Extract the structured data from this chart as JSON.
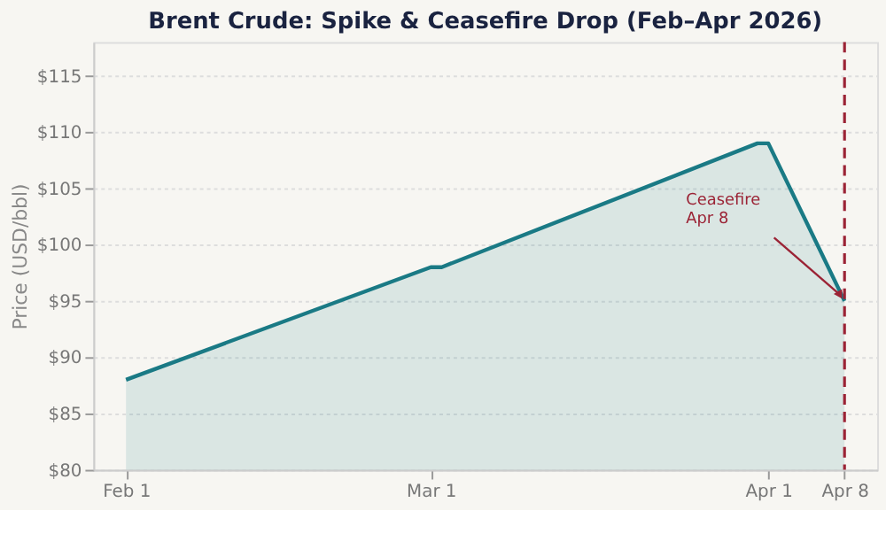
{
  "chart_data": {
    "type": "area",
    "title": "Brent Crude: Spike & Ceasefire Drop (Feb–Apr 2026)",
    "ylabel": "Price (USD/bbl)",
    "x": [
      "2026-02-01",
      "2026-03-01",
      "2026-03-02",
      "2026-03-31",
      "2026-04-01",
      "2026-04-08"
    ],
    "series": [
      {
        "color": "#1a7a85",
        "values": [
          88,
          98,
          98,
          109,
          109,
          95
        ]
      }
    ],
    "xlim": [
      "2026-01-29",
      "2026-04-11"
    ],
    "xticks": [
      {
        "value": "2026-02-01",
        "label": "Feb 1"
      },
      {
        "value": "2026-03-01",
        "label": "Mar 1"
      },
      {
        "value": "2026-04-01",
        "label": "Apr 1"
      },
      {
        "value": "2026-04-08",
        "label": "Apr 8"
      }
    ],
    "ylim": [
      80,
      118
    ],
    "yticks": [
      {
        "value": 80,
        "label": "$80"
      },
      {
        "value": 85,
        "label": "$85"
      },
      {
        "value": 90,
        "label": "$90"
      },
      {
        "value": 95,
        "label": "$95"
      },
      {
        "value": 100,
        "label": "$100"
      },
      {
        "value": 105,
        "label": "$105"
      },
      {
        "value": 110,
        "label": "$110"
      },
      {
        "value": 115,
        "label": "$115"
      }
    ],
    "ref_lines": [
      {
        "axis": "x",
        "value": "2026-04-08",
        "color": "#9b2335",
        "line_style": "dashed"
      }
    ],
    "annotations": [
      {
        "text": "Ceasefire\nApr 8",
        "x": "2026-04-08",
        "y": 95
      }
    ],
    "grid": "y"
  }
}
